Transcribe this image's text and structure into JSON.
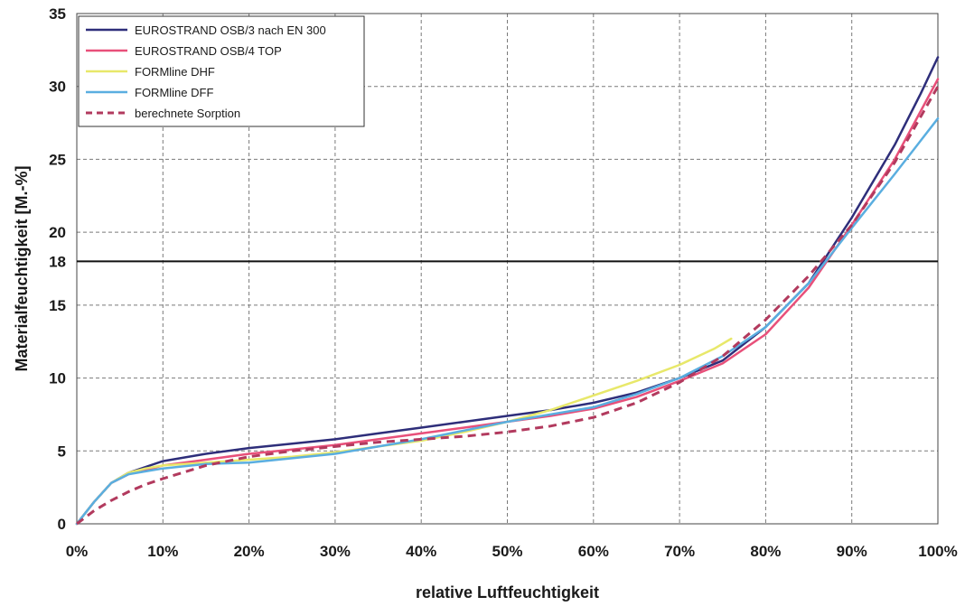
{
  "chart_data": {
    "type": "line",
    "xlabel": "relative Luftfeuchtigkeit",
    "ylabel": "Materialfeuchtigkeit [M.-%]",
    "xlim": [
      0,
      100
    ],
    "ylim": [
      0,
      35
    ],
    "x_ticks": [
      "0%",
      "10%",
      "20%",
      "30%",
      "40%",
      "50%",
      "60%",
      "70%",
      "80%",
      "90%",
      "100%"
    ],
    "y_ticks": [
      "0",
      "5",
      "10",
      "15",
      "18",
      "20",
      "25",
      "30",
      "35"
    ],
    "grid": true,
    "legend_position": "top-left",
    "reference_line": {
      "y": 18,
      "color": "#111111"
    },
    "series": [
      {
        "name": "EUROSTRAND OSB/3 nach EN 300",
        "color": "#2e2e7a",
        "dash": "solid",
        "points": [
          [
            0,
            0
          ],
          [
            2,
            1.5
          ],
          [
            4,
            2.8
          ],
          [
            6,
            3.5
          ],
          [
            8,
            3.9
          ],
          [
            10,
            4.3
          ],
          [
            15,
            4.8
          ],
          [
            20,
            5.2
          ],
          [
            25,
            5.5
          ],
          [
            30,
            5.8
          ],
          [
            35,
            6.2
          ],
          [
            40,
            6.6
          ],
          [
            45,
            7.0
          ],
          [
            50,
            7.4
          ],
          [
            55,
            7.8
          ],
          [
            60,
            8.3
          ],
          [
            65,
            9.0
          ],
          [
            70,
            10.0
          ],
          [
            75,
            11.2
          ],
          [
            80,
            13.5
          ],
          [
            85,
            16.5
          ],
          [
            90,
            21.0
          ],
          [
            95,
            26.0
          ],
          [
            98,
            29.5
          ],
          [
            100,
            32.0
          ]
        ]
      },
      {
        "name": "EUROSTRAND OSB/4 TOP",
        "color": "#e8507a",
        "dash": "solid",
        "points": [
          [
            0,
            0
          ],
          [
            2,
            1.5
          ],
          [
            4,
            2.8
          ],
          [
            6,
            3.4
          ],
          [
            8,
            3.7
          ],
          [
            10,
            4.0
          ],
          [
            15,
            4.4
          ],
          [
            20,
            4.8
          ],
          [
            25,
            5.1
          ],
          [
            30,
            5.4
          ],
          [
            35,
            5.8
          ],
          [
            40,
            6.2
          ],
          [
            45,
            6.6
          ],
          [
            50,
            7.0
          ],
          [
            55,
            7.4
          ],
          [
            60,
            7.9
          ],
          [
            65,
            8.7
          ],
          [
            70,
            9.8
          ],
          [
            75,
            11.0
          ],
          [
            80,
            13.0
          ],
          [
            85,
            16.2
          ],
          [
            90,
            20.5
          ],
          [
            95,
            25.0
          ],
          [
            100,
            30.5
          ]
        ]
      },
      {
        "name": "FORMline DHF",
        "color": "#e8e86a",
        "dash": "solid",
        "points": [
          [
            0,
            0
          ],
          [
            2,
            1.5
          ],
          [
            4,
            2.8
          ],
          [
            6,
            3.5
          ],
          [
            8,
            3.8
          ],
          [
            10,
            4.0
          ],
          [
            15,
            4.2
          ],
          [
            20,
            4.4
          ],
          [
            25,
            4.6
          ],
          [
            30,
            4.9
          ],
          [
            35,
            5.3
          ],
          [
            40,
            5.7
          ],
          [
            45,
            6.3
          ],
          [
            50,
            7.0
          ],
          [
            55,
            7.8
          ],
          [
            60,
            8.8
          ],
          [
            65,
            9.8
          ],
          [
            70,
            10.9
          ],
          [
            74,
            12.0
          ],
          [
            76,
            12.7
          ]
        ]
      },
      {
        "name": "FORMline DFF",
        "color": "#5aaee0",
        "dash": "solid",
        "points": [
          [
            0,
            0
          ],
          [
            2,
            1.5
          ],
          [
            4,
            2.8
          ],
          [
            6,
            3.4
          ],
          [
            8,
            3.6
          ],
          [
            10,
            3.8
          ],
          [
            15,
            4.1
          ],
          [
            20,
            4.2
          ],
          [
            25,
            4.5
          ],
          [
            30,
            4.8
          ],
          [
            35,
            5.3
          ],
          [
            40,
            5.8
          ],
          [
            45,
            6.4
          ],
          [
            50,
            7.0
          ],
          [
            55,
            7.5
          ],
          [
            60,
            8.0
          ],
          [
            65,
            8.9
          ],
          [
            70,
            10.0
          ],
          [
            75,
            11.5
          ],
          [
            80,
            13.5
          ],
          [
            85,
            16.5
          ],
          [
            90,
            20.3
          ],
          [
            95,
            24.0
          ],
          [
            100,
            27.8
          ]
        ]
      },
      {
        "name": "berechnete Sorption",
        "color": "#b23a5e",
        "dash": "dashed",
        "points": [
          [
            0,
            0
          ],
          [
            2,
            0.9
          ],
          [
            4,
            1.6
          ],
          [
            6,
            2.2
          ],
          [
            8,
            2.7
          ],
          [
            10,
            3.1
          ],
          [
            15,
            4.0
          ],
          [
            20,
            4.6
          ],
          [
            25,
            5.0
          ],
          [
            30,
            5.3
          ],
          [
            35,
            5.6
          ],
          [
            40,
            5.8
          ],
          [
            45,
            6.0
          ],
          [
            50,
            6.3
          ],
          [
            55,
            6.7
          ],
          [
            60,
            7.3
          ],
          [
            65,
            8.3
          ],
          [
            70,
            9.7
          ],
          [
            75,
            11.5
          ],
          [
            80,
            14.0
          ],
          [
            85,
            17.0
          ],
          [
            90,
            20.5
          ],
          [
            95,
            24.8
          ],
          [
            100,
            30.0
          ]
        ]
      }
    ]
  }
}
